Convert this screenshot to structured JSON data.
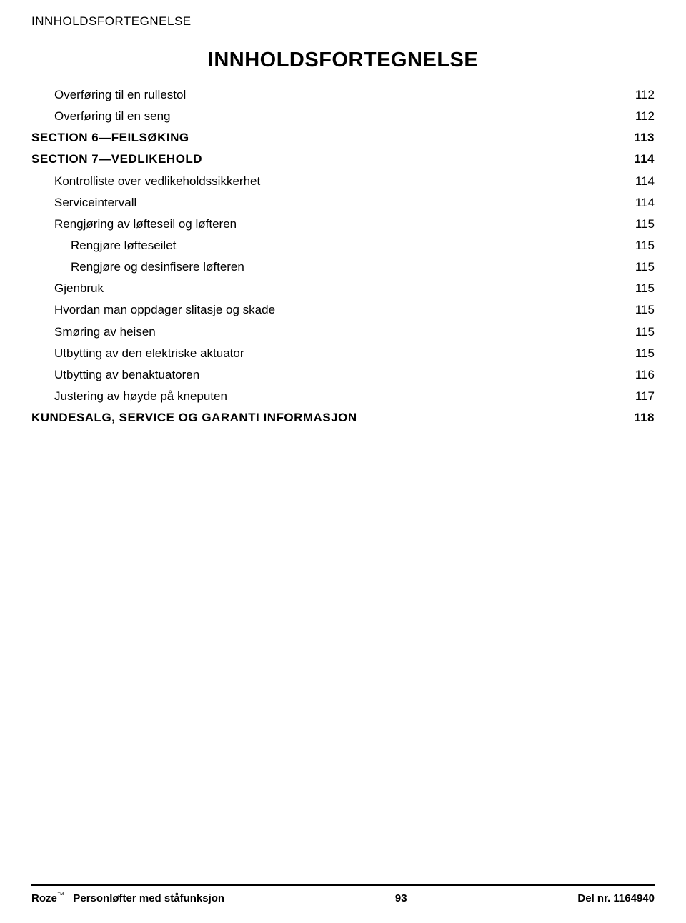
{
  "header_label": "INNHOLDSFORTEGNELSE",
  "main_title": "INNHOLDSFORTEGNELSE",
  "toc": [
    {
      "level": 1,
      "label": "Overføring til en rullestol",
      "page": "112"
    },
    {
      "level": 1,
      "label": "Overføring til en seng",
      "page": "112"
    },
    {
      "level": 0,
      "label": "SECTION 6—FEILSØKING ",
      "page": "113"
    },
    {
      "level": 0,
      "label": "SECTION 7—VEDLIKEHOLD ",
      "page": "114"
    },
    {
      "level": 1,
      "label": "Kontrolliste over vedlikeholdssikkerhet",
      "page": "114"
    },
    {
      "level": 1,
      "label": "Serviceintervall",
      "page": "114"
    },
    {
      "level": 1,
      "label": "Rengjøring av løfteseil og løfteren",
      "page": "115"
    },
    {
      "level": 2,
      "label": "Rengjøre løfteseilet",
      "page": "115"
    },
    {
      "level": 2,
      "label": "Rengjøre og desinfisere løfteren",
      "page": "115"
    },
    {
      "level": 1,
      "label": "Gjenbruk",
      "page": "115"
    },
    {
      "level": 1,
      "label": "Hvordan man oppdager slitasje og skade",
      "page": "115"
    },
    {
      "level": 1,
      "label": "Smøring av heisen",
      "page": "115"
    },
    {
      "level": 1,
      "label": "Utbytting av den elektriske aktuator",
      "page": "115"
    },
    {
      "level": 1,
      "label": "Utbytting av benaktuatoren",
      "page": "116"
    },
    {
      "level": 1,
      "label": "Justering av høyde på kneputen",
      "page": "117"
    },
    {
      "level": 0,
      "label": "KUNDESALG, SERVICE OG GARANTI INFORMASJON",
      "page": "118"
    }
  ],
  "footer": {
    "product_name": "Roze",
    "product_desc": "Personløfter med ståfunksjon",
    "page_number": "93",
    "part_label": "Del nr. 1164940"
  }
}
